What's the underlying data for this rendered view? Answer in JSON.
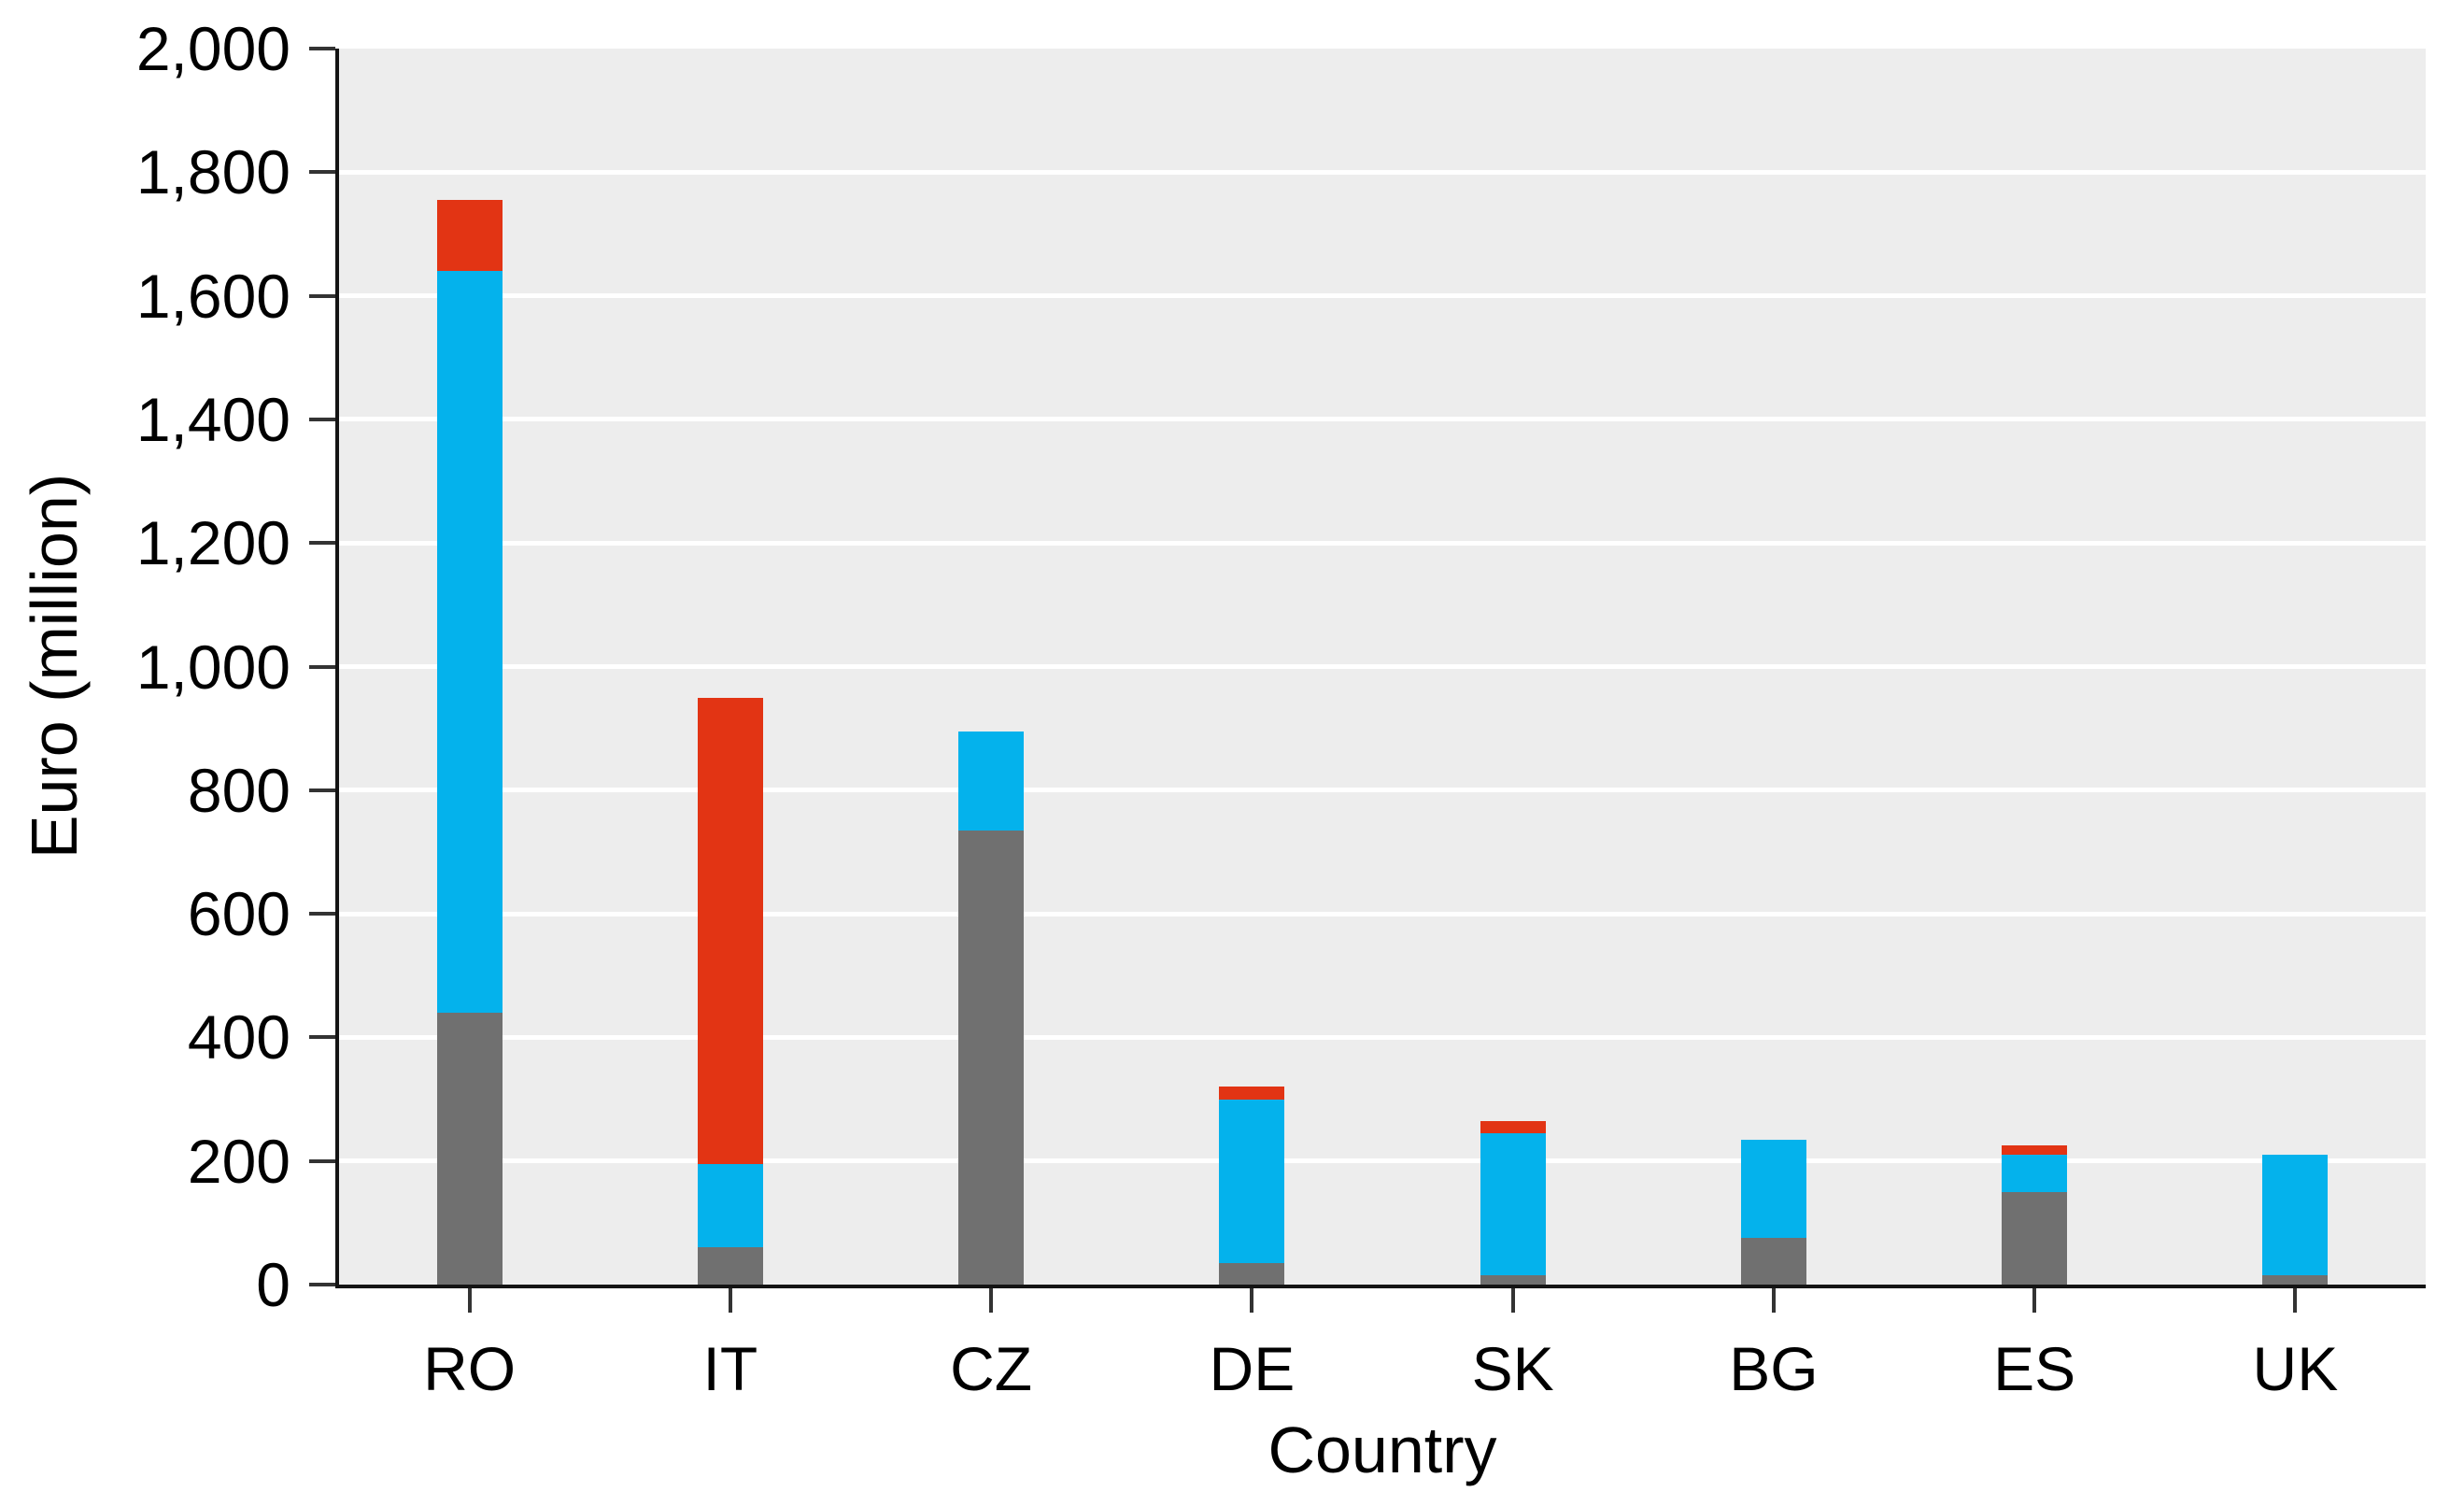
{
  "chart_data": {
    "type": "bar",
    "stacked": true,
    "title": "",
    "xlabel": "Country",
    "ylabel": "Euro (million)",
    "categories": [
      "RO",
      "IT",
      "CZ",
      "DE",
      "SK",
      "BG",
      "ES",
      "UK"
    ],
    "series": [
      {
        "name": "grey",
        "color": "#707070",
        "values": [
          440,
          60,
          735,
          35,
          15,
          75,
          150,
          15
        ]
      },
      {
        "name": "blue",
        "color": "#04b2ec",
        "values": [
          1200,
          135,
          160,
          265,
          230,
          160,
          60,
          195
        ]
      },
      {
        "name": "red",
        "color": "#e23414",
        "values": [
          115,
          755,
          0,
          20,
          20,
          0,
          15,
          0
        ]
      }
    ],
    "totals": [
      1755,
      950,
      895,
      320,
      265,
      235,
      225,
      210
    ],
    "ylim": [
      0,
      2000
    ],
    "ytick_step": 200,
    "ytick_labels": [
      "0",
      "200",
      "400",
      "600",
      "800",
      "1,000",
      "1,200",
      "1,400",
      "1,600",
      "1,800",
      "2,000"
    ],
    "grid": true,
    "legend": false,
    "panel_bg": "#ededed",
    "gridline_color": "#ffffff",
    "axis_color": "#141414"
  }
}
